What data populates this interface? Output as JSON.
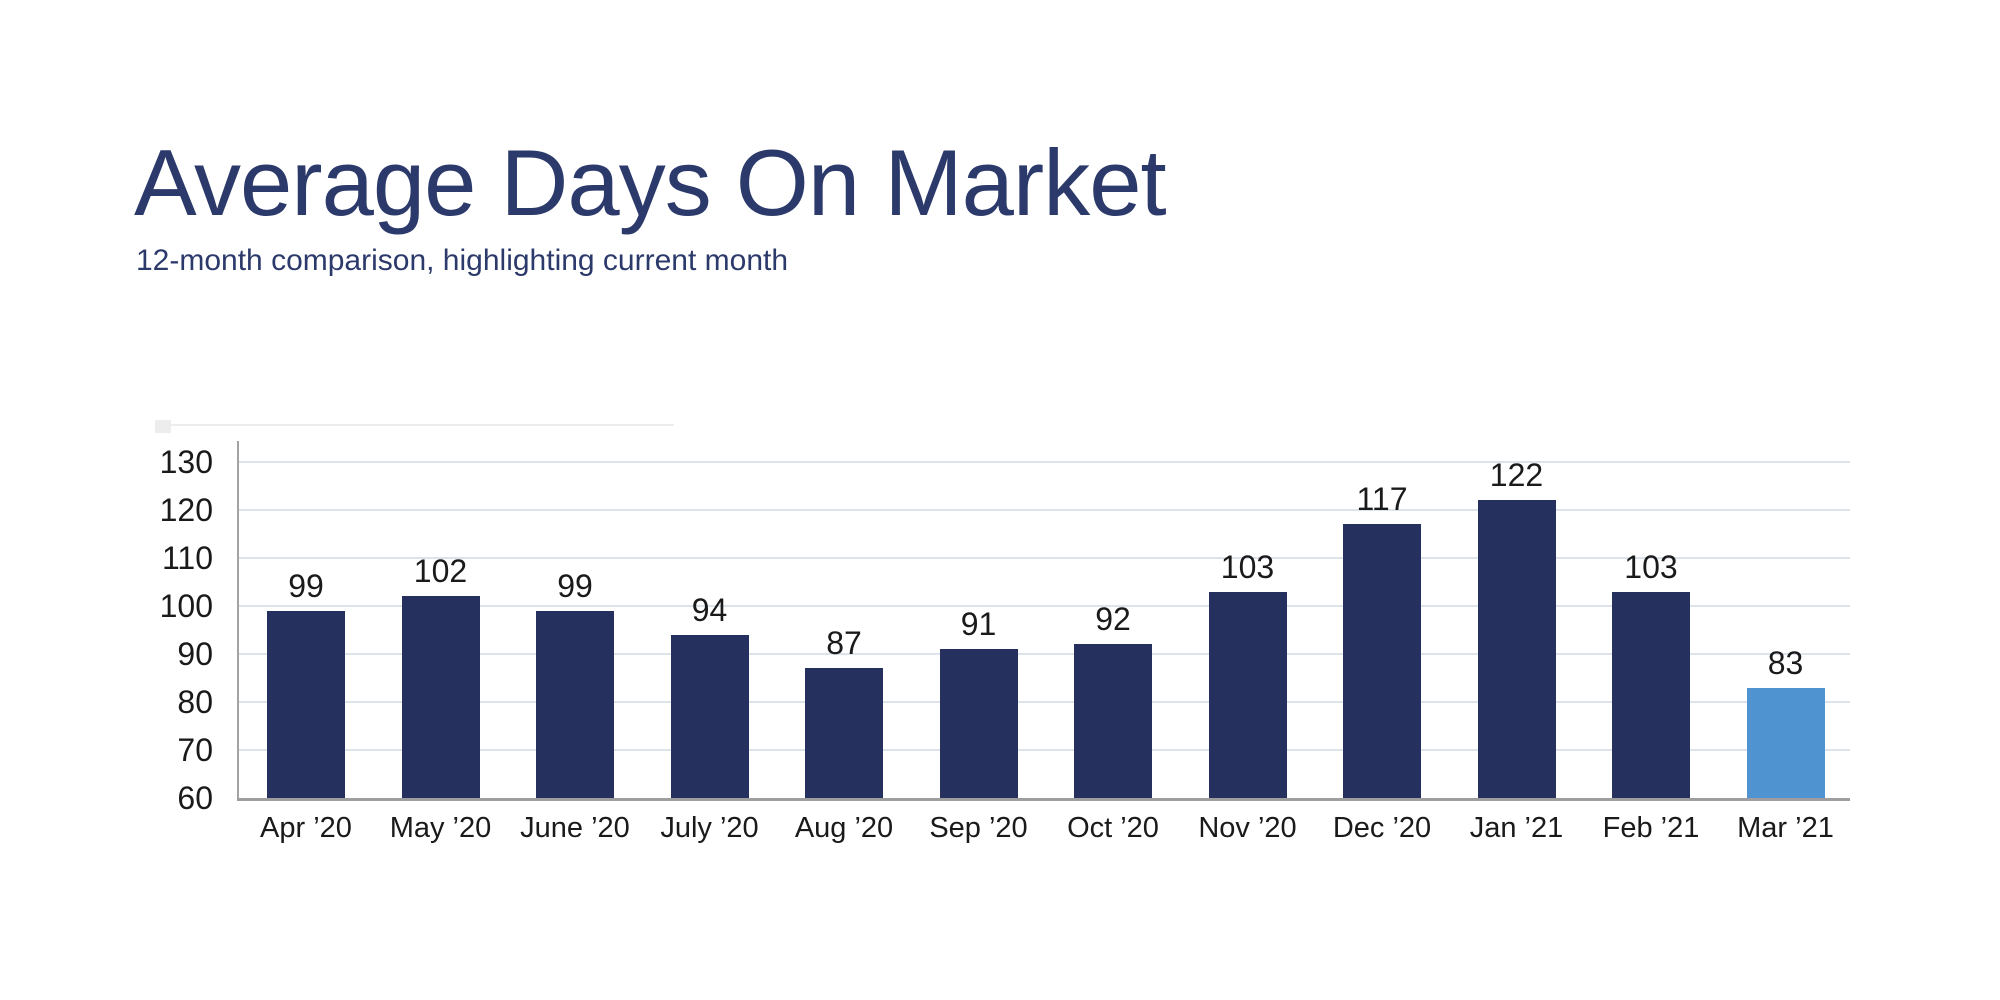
{
  "header": {
    "title": "Average Days On Market",
    "subtitle": "12-month comparison, highlighting current month"
  },
  "colors": {
    "heading_text": "#2C3A6B",
    "bar": "#26305F",
    "bar_highlight": "#4F94D0",
    "gridline": "#DDE3ED",
    "axis_line": "#A3A3A3",
    "baseline": "#9E9E9E",
    "label_text": "#1A1A1A"
  },
  "chart_data": {
    "type": "bar",
    "title": "Average Days On Market",
    "subtitle": "12-month comparison, highlighting current month",
    "categories": [
      "Apr ’20",
      "May ’20",
      "June ’20",
      "July ’20",
      "Aug ’20",
      "Sep ’20",
      "Oct ’20",
      "Nov ’20",
      "Dec ’20",
      "Jan ’21",
      "Feb ’21",
      "Mar ’21"
    ],
    "values": [
      99,
      102,
      99,
      94,
      87,
      91,
      92,
      103,
      117,
      122,
      103,
      83
    ],
    "data_labels": [
      99,
      102,
      99,
      94,
      87,
      91,
      92,
      103,
      117,
      122,
      103,
      83
    ],
    "highlight_index": 11,
    "highlight_category": "Mar ’21",
    "bar_color": "#26305F",
    "highlight_color": "#4F94D0",
    "y_ticks": [
      130,
      120,
      110,
      100,
      90,
      80,
      70,
      60
    ],
    "ylim": [
      60,
      134
    ],
    "xlabel": "",
    "ylabel": "",
    "grid": true,
    "legend": false
  }
}
